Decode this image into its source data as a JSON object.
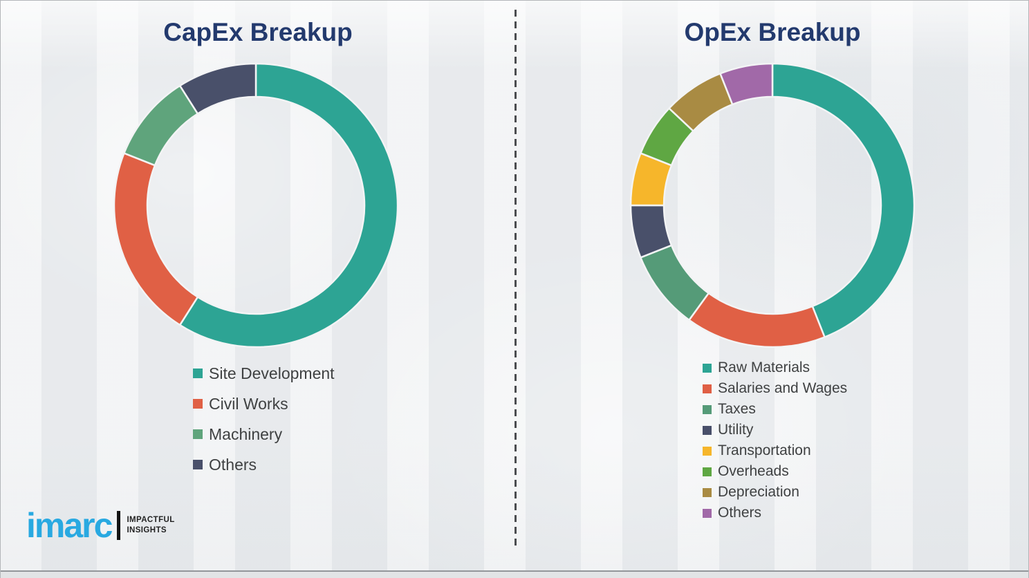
{
  "page": {
    "background_color": "#edeff1",
    "divider_color": "#4b4d50",
    "title_color": "#233a6e",
    "legend_text_color": "#3f4142",
    "segment_gap_color": "#f3f4f5"
  },
  "chart_data": [
    {
      "type": "pie",
      "style": "donut",
      "title": "CapEx Breakup",
      "categories": [
        "Site Development",
        "Civil Works",
        "Machinery",
        "Others"
      ],
      "values": [
        59,
        22,
        10,
        9
      ],
      "unit": "percent-estimated",
      "colors": [
        "#2da494",
        "#e06045",
        "#5fa47c",
        "#49506a"
      ],
      "start_angle": "top",
      "direction": "clockwise",
      "legend_position": "below-left"
    },
    {
      "type": "pie",
      "style": "donut",
      "title": "OpEx Breakup",
      "categories": [
        "Raw Materials",
        "Salaries and Wages",
        "Taxes",
        "Utility",
        "Transportation",
        "Overheads",
        "Depreciation",
        "Others"
      ],
      "values": [
        44,
        16,
        9,
        6,
        6,
        6,
        7,
        6
      ],
      "unit": "percent-estimated",
      "colors": [
        "#2da494",
        "#e06045",
        "#559b78",
        "#49506a",
        "#f6b62b",
        "#5fa743",
        "#a98b43",
        "#a169a8"
      ],
      "start_angle": "top",
      "direction": "clockwise",
      "legend_position": "below-left"
    }
  ],
  "branding": {
    "logo_text": "imarc",
    "tagline_line1": "IMPACTFUL",
    "tagline_line2": "INSIGHTS",
    "logo_color": "#29a9e1"
  }
}
